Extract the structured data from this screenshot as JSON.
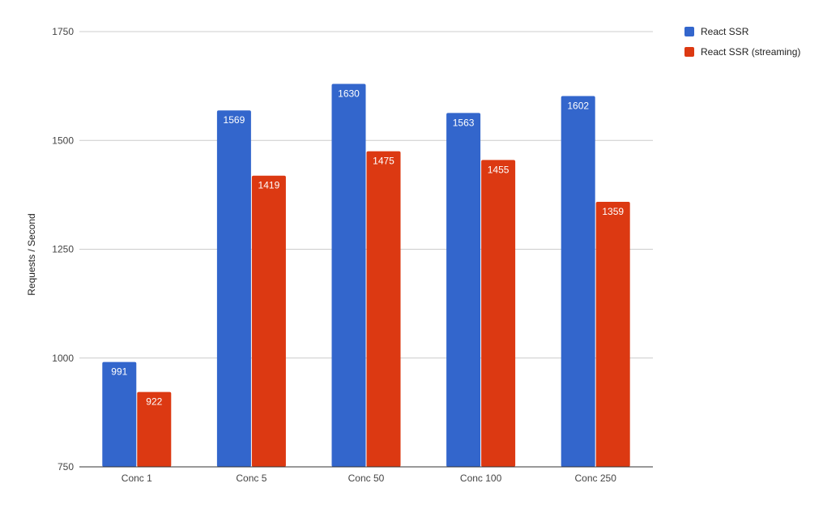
{
  "chart_data": {
    "type": "bar",
    "categories": [
      "Conc 1",
      "Conc 5",
      "Conc 50",
      "Conc 100",
      "Conc 250"
    ],
    "series": [
      {
        "name": "React SSR",
        "color": "#3366cc",
        "values": [
          991,
          1569,
          1630,
          1563,
          1602
        ]
      },
      {
        "name": "React SSR (streaming)",
        "color": "#dc3912",
        "values": [
          922,
          1419,
          1475,
          1455,
          1359
        ]
      }
    ],
    "ylabel": "Requests / Second",
    "xlabel": "",
    "ylim": [
      750,
      1750
    ],
    "yticks": [
      750,
      1000,
      1250,
      1500,
      1750
    ],
    "grid": true,
    "legend": "right"
  }
}
